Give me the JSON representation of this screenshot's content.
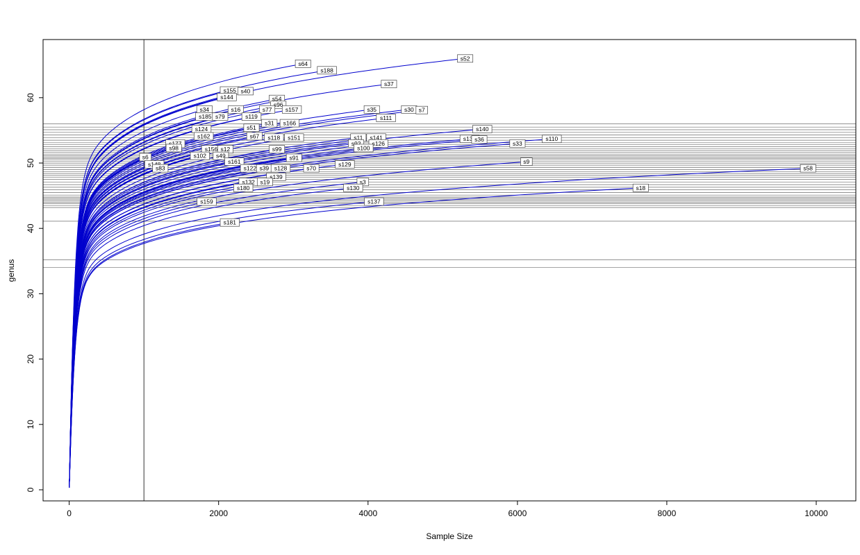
{
  "chart_data": {
    "type": "line",
    "title": "",
    "xlabel": "Sample Size",
    "ylabel": "genus",
    "xlim": [
      -350,
      10530
    ],
    "ylim": [
      -1.7,
      68.9
    ],
    "x_ticks": [
      0,
      2000,
      4000,
      6000,
      8000,
      10000
    ],
    "y_ticks": [
      0,
      10,
      20,
      30,
      40,
      50,
      60
    ],
    "grid": false,
    "legend": "none",
    "curve_color": "#0000CD",
    "ref_line_color": "#6e6e6e",
    "vline_x": 1000,
    "hlines": [
      56.0,
      55.5,
      55.1,
      54.7,
      54.3,
      53.9,
      53.5,
      53.1,
      52.8,
      52.5,
      52.2,
      51.9,
      51.6,
      51.3,
      51.1,
      50.9,
      50.7,
      50.5,
      50.2,
      49.9,
      49.6,
      49.3,
      49.0,
      48.7,
      48.4,
      48.1,
      47.8,
      47.5,
      47.1,
      46.7,
      46.3,
      45.9,
      45.5,
      45.1,
      44.8,
      44.6,
      44.4,
      44.2,
      44.0,
      43.8,
      43.5,
      43.2,
      41.1,
      35.2,
      34.0
    ],
    "series": [
      {
        "name": "s52",
        "end_x": 5300,
        "end_y": 66.0
      },
      {
        "name": "s64",
        "end_x": 3130,
        "end_y": 65.2
      },
      {
        "name": "s188",
        "end_x": 3450,
        "end_y": 64.2
      },
      {
        "name": "s37",
        "end_x": 4280,
        "end_y": 62.1
      },
      {
        "name": "s155",
        "end_x": 2150,
        "end_y": 61.1
      },
      {
        "name": "s40",
        "end_x": 2360,
        "end_y": 61.0
      },
      {
        "name": "s144",
        "end_x": 2110,
        "end_y": 60.1
      },
      {
        "name": "s54",
        "end_x": 2780,
        "end_y": 59.8
      },
      {
        "name": "s96",
        "end_x": 2800,
        "end_y": 58.9
      },
      {
        "name": "s34",
        "end_x": 1810,
        "end_y": 58.2
      },
      {
        "name": "s16",
        "end_x": 2230,
        "end_y": 58.2
      },
      {
        "name": "s77",
        "end_x": 2650,
        "end_y": 58.2
      },
      {
        "name": "s157",
        "end_x": 2980,
        "end_y": 58.2
      },
      {
        "name": "s35",
        "end_x": 4050,
        "end_y": 58.2
      },
      {
        "name": "s30",
        "end_x": 4550,
        "end_y": 58.2
      },
      {
        "name": "s7",
        "end_x": 4720,
        "end_y": 58.1
      },
      {
        "name": "s185",
        "end_x": 1820,
        "end_y": 57.1
      },
      {
        "name": "s79",
        "end_x": 2020,
        "end_y": 57.1
      },
      {
        "name": "s119",
        "end_x": 2440,
        "end_y": 57.1
      },
      {
        "name": "s111",
        "end_x": 4240,
        "end_y": 56.9
      },
      {
        "name": "s31",
        "end_x": 2680,
        "end_y": 56.1
      },
      {
        "name": "s166",
        "end_x": 2950,
        "end_y": 56.1
      },
      {
        "name": "s124",
        "end_x": 1770,
        "end_y": 55.2
      },
      {
        "name": "s51",
        "end_x": 2440,
        "end_y": 55.4
      },
      {
        "name": "s140",
        "end_x": 5530,
        "end_y": 55.2
      },
      {
        "name": "s162",
        "end_x": 1800,
        "end_y": 54.1
      },
      {
        "name": "s67",
        "end_x": 2480,
        "end_y": 54.1
      },
      {
        "name": "s118",
        "end_x": 2740,
        "end_y": 53.9
      },
      {
        "name": "s151",
        "end_x": 3010,
        "end_y": 53.9
      },
      {
        "name": "s11",
        "end_x": 3870,
        "end_y": 53.9
      },
      {
        "name": "s141",
        "end_x": 4110,
        "end_y": 53.9
      },
      {
        "name": "s177",
        "end_x": 1420,
        "end_y": 53.0
      },
      {
        "name": "s136",
        "end_x": 5360,
        "end_y": 53.7
      },
      {
        "name": "s36",
        "end_x": 5490,
        "end_y": 53.6
      },
      {
        "name": "s33",
        "end_x": 6000,
        "end_y": 53.0
      },
      {
        "name": "s110",
        "end_x": 6460,
        "end_y": 53.7
      },
      {
        "name": "s92",
        "end_x": 3840,
        "end_y": 53.0
      },
      {
        "name": "s126",
        "end_x": 4140,
        "end_y": 53.0
      },
      {
        "name": "s98",
        "end_x": 1400,
        "end_y": 52.3
      },
      {
        "name": "s156",
        "end_x": 1900,
        "end_y": 52.1
      },
      {
        "name": "s12",
        "end_x": 2090,
        "end_y": 52.1
      },
      {
        "name": "s99",
        "end_x": 2780,
        "end_y": 52.1
      },
      {
        "name": "s100",
        "end_x": 3940,
        "end_y": 52.3
      },
      {
        "name": "s6",
        "end_x": 1020,
        "end_y": 50.9
      },
      {
        "name": "s102",
        "end_x": 1750,
        "end_y": 51.1
      },
      {
        "name": "s49",
        "end_x": 2030,
        "end_y": 51.1
      },
      {
        "name": "s148",
        "end_x": 1140,
        "end_y": 49.8
      },
      {
        "name": "s91",
        "end_x": 3010,
        "end_y": 50.8
      },
      {
        "name": "s161",
        "end_x": 2210,
        "end_y": 50.2
      },
      {
        "name": "s129",
        "end_x": 3690,
        "end_y": 49.8
      },
      {
        "name": "s9",
        "end_x": 6120,
        "end_y": 50.2
      },
      {
        "name": "s83",
        "end_x": 1220,
        "end_y": 49.2
      },
      {
        "name": "s122",
        "end_x": 2420,
        "end_y": 49.2
      },
      {
        "name": "s39",
        "end_x": 2610,
        "end_y": 49.2
      },
      {
        "name": "s128",
        "end_x": 2830,
        "end_y": 49.2
      },
      {
        "name": "s70",
        "end_x": 3240,
        "end_y": 49.2
      },
      {
        "name": "s58",
        "end_x": 9890,
        "end_y": 49.2
      },
      {
        "name": "s139",
        "end_x": 2770,
        "end_y": 47.9
      },
      {
        "name": "s132",
        "end_x": 2400,
        "end_y": 47.1
      },
      {
        "name": "s19",
        "end_x": 2620,
        "end_y": 47.1
      },
      {
        "name": "s3",
        "end_x": 3930,
        "end_y": 47.1
      },
      {
        "name": "s130",
        "end_x": 3800,
        "end_y": 46.2
      },
      {
        "name": "s180",
        "end_x": 2330,
        "end_y": 46.2
      },
      {
        "name": "s18",
        "end_x": 7650,
        "end_y": 46.2
      },
      {
        "name": "s159",
        "end_x": 1840,
        "end_y": 44.1
      },
      {
        "name": "s137",
        "end_x": 4080,
        "end_y": 44.1
      },
      {
        "name": "s181",
        "end_x": 2150,
        "end_y": 40.9
      }
    ]
  }
}
